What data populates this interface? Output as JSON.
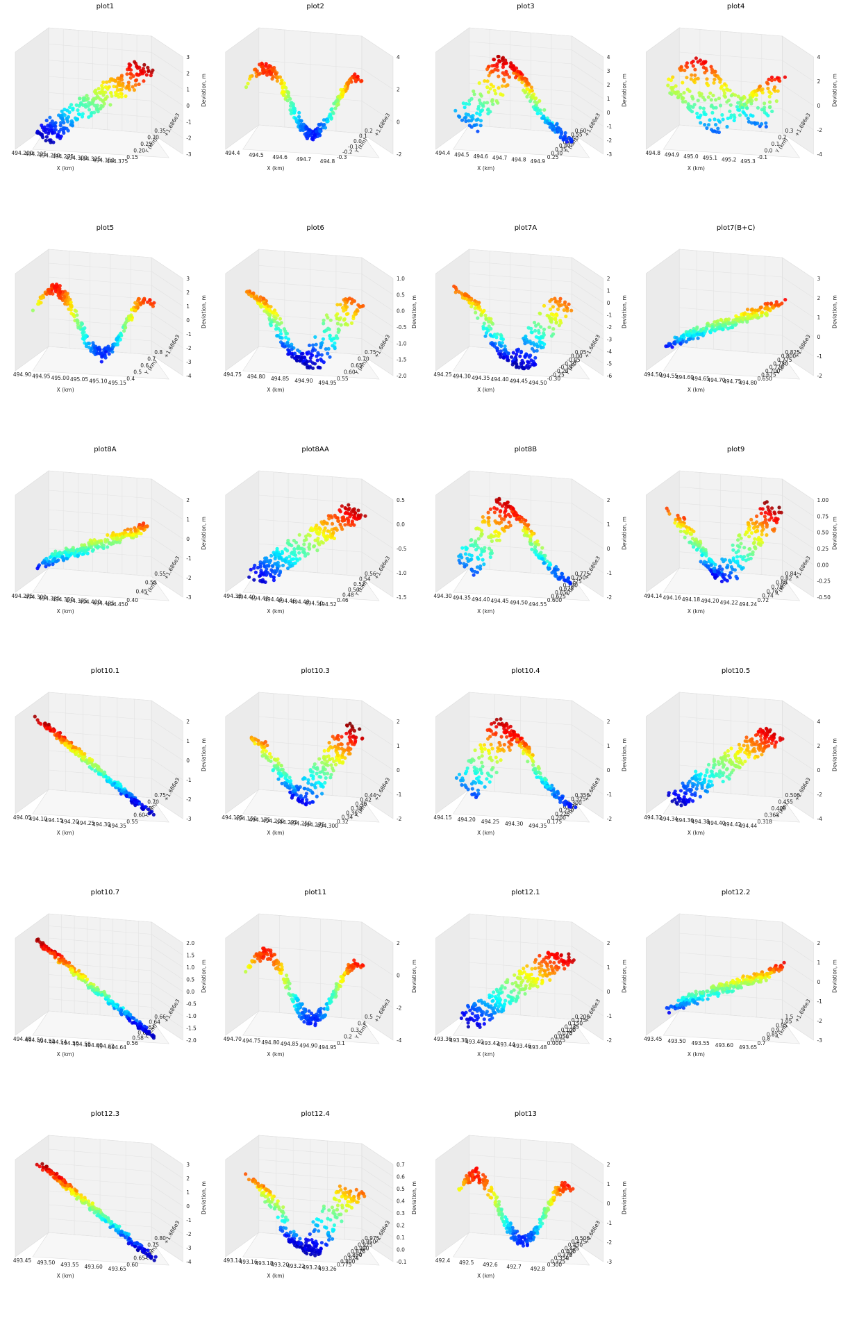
{
  "figure": {
    "layout": "6 rows x 4 columns of 3D scatter subplots"
  },
  "chart_data": [
    {
      "type": "scatter",
      "title": "plot1",
      "xlabel": "X (km)",
      "ylabel": "Y (km)",
      "zlabel": "Deviation, m",
      "offset": "+1.686e3",
      "xticks": [
        "494.200",
        "494.225",
        "494.250",
        "494.275",
        "494.300",
        "494.325",
        "494.350",
        "494.375"
      ],
      "yticks": [
        "0.15",
        "0.20",
        "0.25",
        "0.30",
        "0.35"
      ],
      "zticks": [
        "-3",
        "-2",
        "-1",
        "0",
        "1",
        "2",
        "3"
      ],
      "shape": "rise",
      "zlim": [
        -3,
        3
      ]
    },
    {
      "type": "scatter",
      "title": "plot2",
      "xlabel": "X (km)",
      "ylabel": "Y (km)",
      "zlabel": "",
      "offset": "+1.686e3",
      "xticks": [
        "494.4",
        "494.5",
        "494.6",
        "494.7",
        "494.8"
      ],
      "yticks": [
        "-0.3",
        "-0.2",
        "-0.1",
        "0.0",
        "0.1",
        "0.2"
      ],
      "zticks": [
        "-2",
        "0",
        "2",
        "4"
      ],
      "shape": "wave",
      "zlim": [
        -3,
        4
      ]
    },
    {
      "type": "scatter",
      "title": "plot3",
      "xlabel": "X (km)",
      "ylabel": "Y (km)",
      "zlabel": "Deviation, m",
      "offset": "+1.686e3",
      "xticks": [
        "494.4",
        "494.5",
        "494.6",
        "494.7",
        "494.8",
        "494.9"
      ],
      "yticks": [
        "0.25",
        "0.30",
        "0.35",
        "0.40",
        "0.45",
        "0.50",
        "0.55",
        "0.60"
      ],
      "zticks": [
        "-3",
        "-2",
        "-1",
        "0",
        "1",
        "2",
        "3",
        "4"
      ],
      "shape": "peak",
      "zlim": [
        -3,
        4
      ]
    },
    {
      "type": "scatter",
      "title": "plot4",
      "xlabel": "X (km)",
      "ylabel": "Y (km)",
      "zlabel": "Deviation, m",
      "offset": "+1.686e3",
      "xticks": [
        "494.8",
        "494.9",
        "495.0",
        "495.1",
        "495.2",
        "495.3"
      ],
      "yticks": [
        "-0.1",
        "0.0",
        "0.1",
        "0.2",
        "0.3"
      ],
      "zticks": [
        "-4",
        "-2",
        "0",
        "2",
        "4"
      ],
      "shape": "blob",
      "zlim": [
        -4,
        4
      ]
    },
    {
      "type": "scatter",
      "title": "plot5",
      "xlabel": "X (km)",
      "ylabel": "Y (km)",
      "zlabel": "Deviation, m",
      "offset": "+1.686e3",
      "xticks": [
        "494.90",
        "494.95",
        "495.00",
        "495.05",
        "495.10",
        "495.15"
      ],
      "yticks": [
        "0.4",
        "0.5",
        "0.6",
        "0.7",
        "0.8"
      ],
      "zticks": [
        "-4",
        "-3",
        "-2",
        "-1",
        "0",
        "1",
        "2",
        "3"
      ],
      "shape": "wave",
      "zlim": [
        -4,
        3
      ]
    },
    {
      "type": "scatter",
      "title": "plot6",
      "xlabel": "X (km)",
      "ylabel": "Y (km)",
      "zlabel": "Deviation, m",
      "offset": "+1.686e3",
      "xticks": [
        "494.75",
        "494.80",
        "494.85",
        "494.90",
        "494.95"
      ],
      "yticks": [
        "0.55",
        "0.60",
        "0.65",
        "0.70",
        "0.75"
      ],
      "zticks": [
        "-2.0",
        "-1.5",
        "-1.0",
        "-0.5",
        "0.0",
        "0.5",
        "1.0"
      ],
      "shape": "valley",
      "zlim": [
        -2,
        1
      ]
    },
    {
      "type": "scatter",
      "title": "plot7A",
      "xlabel": "X (km)",
      "ylabel": "Y (km)",
      "zlabel": "Deviation, m",
      "offset": "+1.686e3",
      "xticks": [
        "494.25",
        "494.30",
        "494.35",
        "494.40",
        "494.45",
        "494.50"
      ],
      "yticks": [
        "-0.30",
        "-0.25",
        "-0.20",
        "-0.15",
        "-0.10",
        "-0.05",
        "0.00",
        "0.05"
      ],
      "zticks": [
        "-6",
        "-5",
        "-4",
        "-3",
        "-2",
        "-1",
        "0",
        "1",
        "2"
      ],
      "shape": "valley",
      "zlim": [
        -6,
        2
      ]
    },
    {
      "type": "scatter",
      "title": "plot7(B+C)",
      "xlabel": "X (km)",
      "ylabel": "Y (km)",
      "zlabel": "Deviation, m",
      "offset": "+1.686e3",
      "xticks": [
        "494.50",
        "494.55",
        "494.60",
        "494.65",
        "494.70",
        "494.75",
        "494.80"
      ],
      "yticks": [
        "0.650",
        "0.675",
        "0.700",
        "0.725",
        "0.750",
        "0.775",
        "0.800",
        "0.825"
      ],
      "zticks": [
        "-2",
        "-1",
        "0",
        "1",
        "2",
        "3"
      ],
      "shape": "diag",
      "zlim": [
        -2,
        3
      ]
    },
    {
      "type": "scatter",
      "title": "plot8A",
      "xlabel": "X (km)",
      "ylabel": "Y (km)",
      "zlabel": "Deviation, m",
      "offset": "+1.686e3",
      "xticks": [
        "494.275",
        "494.300",
        "494.325",
        "494.350",
        "494.375",
        "494.400",
        "494.425",
        "494.450"
      ],
      "yticks": [
        "0.40",
        "0.45",
        "0.50",
        "0.55"
      ],
      "zticks": [
        "-3",
        "-2",
        "-1",
        "0",
        "1",
        "2"
      ],
      "shape": "diag",
      "zlim": [
        -3,
        2
      ]
    },
    {
      "type": "scatter",
      "title": "plot8AA",
      "xlabel": "X (km)",
      "ylabel": "Y (km)",
      "zlabel": "",
      "offset": "+1.686e3",
      "xticks": [
        "494.38",
        "494.40",
        "494.42",
        "494.44",
        "494.46",
        "494.48",
        "494.50",
        "494.52"
      ],
      "yticks": [
        "0.46",
        "0.48",
        "0.50",
        "0.52",
        "0.54",
        "0.56"
      ],
      "zticks": [
        "-1.5",
        "-1.0",
        "-0.5",
        "0.0",
        "0.5"
      ],
      "shape": "rise",
      "zlim": [
        -1.5,
        0.75
      ]
    },
    {
      "type": "scatter",
      "title": "plot8B",
      "xlabel": "X (km)",
      "ylabel": "Y (km)",
      "zlabel": "Deviation, m",
      "offset": "+1.686e3",
      "xticks": [
        "494.30",
        "494.35",
        "494.40",
        "494.45",
        "494.50",
        "494.55"
      ],
      "yticks": [
        "0.600",
        "0.625",
        "0.650",
        "0.675",
        "0.700",
        "0.725",
        "0.750",
        "0.775"
      ],
      "zticks": [
        "-2",
        "-1",
        "0",
        "1",
        "2"
      ],
      "shape": "peak",
      "zlim": [
        -2,
        2
      ]
    },
    {
      "type": "scatter",
      "title": "plot9",
      "xlabel": "X (km)",
      "ylabel": "Y (km)",
      "zlabel": "Deviation, m",
      "offset": "+1.686e3",
      "xticks": [
        "494.14",
        "494.16",
        "494.18",
        "494.20",
        "494.22",
        "494.24"
      ],
      "yticks": [
        "0.72",
        "0.74",
        "0.76",
        "0.78",
        "0.80",
        "0.82",
        "0.84"
      ],
      "zticks": [
        "-0.50",
        "-0.25",
        "0.00",
        "0.25",
        "0.50",
        "0.75",
        "1.00"
      ],
      "shape": "vee",
      "zlim": [
        -0.5,
        1
      ]
    },
    {
      "type": "scatter",
      "title": "plot10.1",
      "xlabel": "X (km)",
      "ylabel": "Y (km)",
      "zlabel": "Deviation, m",
      "offset": "+1.686e3",
      "xticks": [
        "494.05",
        "494.10",
        "494.15",
        "494.20",
        "494.25",
        "494.30",
        "494.35"
      ],
      "yticks": [
        "0.55",
        "0.60",
        "0.65",
        "0.70",
        "0.75"
      ],
      "zticks": [
        "-3",
        "-2",
        "-1",
        "0",
        "1",
        "2"
      ],
      "shape": "fall",
      "zlim": [
        -3,
        2
      ]
    },
    {
      "type": "scatter",
      "title": "plot10.3",
      "xlabel": "X (km)",
      "ylabel": "Y (km)",
      "zlabel": "",
      "offset": "+1.686e3",
      "xticks": [
        "494.125",
        "494.150",
        "494.175",
        "494.200",
        "494.225",
        "494.250",
        "494.275",
        "494.300"
      ],
      "yticks": [
        "0.32",
        "0.34",
        "0.36",
        "0.38",
        "0.40",
        "0.42",
        "0.44"
      ],
      "zticks": [
        "-2",
        "-1",
        "0",
        "1",
        "2"
      ],
      "shape": "vee",
      "zlim": [
        -2,
        2
      ]
    },
    {
      "type": "scatter",
      "title": "plot10.4",
      "xlabel": "X (km)",
      "ylabel": "Y (km)",
      "zlabel": "Deviation, m",
      "offset": "+1.686e3",
      "xticks": [
        "494.15",
        "494.20",
        "494.25",
        "494.30",
        "494.35"
      ],
      "yticks": [
        "0.175",
        "0.200",
        "0.225",
        "0.250",
        "0.275",
        "0.300",
        "0.325",
        "0.350"
      ],
      "zticks": [
        "-2",
        "-1",
        "0",
        "1",
        "2"
      ],
      "shape": "peak",
      "zlim": [
        -2,
        2
      ]
    },
    {
      "type": "scatter",
      "title": "plot10.5",
      "xlabel": "X (km)",
      "ylabel": "Y (km)",
      "zlabel": "Deviation, m",
      "offset": "+1.686e3",
      "xticks": [
        "494.32",
        "494.34",
        "494.36",
        "494.38",
        "494.40",
        "494.42",
        "494.44"
      ],
      "yticks": [
        "0.318",
        "0.363",
        "0.409",
        "0.455",
        "0.500"
      ],
      "zticks": [
        "-4",
        "-2",
        "0",
        "2",
        "4"
      ],
      "shape": "rise",
      "zlim": [
        -4,
        4
      ]
    },
    {
      "type": "scatter",
      "title": "plot10.7",
      "xlabel": "X (km)",
      "ylabel": "Y (km)",
      "zlabel": "Deviation, m",
      "offset": "+1.686e3",
      "xticks": [
        "494.48",
        "494.50",
        "494.52",
        "494.54",
        "494.56",
        "494.58",
        "494.60",
        "494.62",
        "494.64"
      ],
      "yticks": [
        "0.56",
        "0.58",
        "0.60",
        "0.62",
        "0.64",
        "0.66"
      ],
      "zticks": [
        "-2.0",
        "-1.5",
        "-1.0",
        "-0.5",
        "0.0",
        "0.5",
        "1.0",
        "1.5",
        "2.0"
      ],
      "shape": "fall",
      "zlim": [
        -2,
        2
      ]
    },
    {
      "type": "scatter",
      "title": "plot11",
      "xlabel": "X (km)",
      "ylabel": "Y (km)",
      "zlabel": "Deviation, m",
      "offset": "+1.686e3",
      "xticks": [
        "494.70",
        "494.75",
        "494.80",
        "494.85",
        "494.90",
        "494.95"
      ],
      "yticks": [
        "0.1",
        "0.2",
        "0.3",
        "0.4",
        "0.5"
      ],
      "zticks": [
        "-4",
        "-2",
        "0",
        "2"
      ],
      "shape": "wave",
      "zlim": [
        -4,
        2
      ]
    },
    {
      "type": "scatter",
      "title": "plot12.1",
      "xlabel": "X (km)",
      "ylabel": "Y (km)",
      "zlabel": "Deviation, m",
      "offset": "+1.686e3",
      "xticks": [
        "493.36",
        "493.38",
        "493.40",
        "493.42",
        "493.44",
        "493.46",
        "493.48"
      ],
      "yticks": [
        "0.000",
        "0.025",
        "0.050",
        "0.075",
        "0.100",
        "0.125",
        "0.150",
        "0.175",
        "0.200"
      ],
      "zticks": [
        "-2",
        "-1",
        "0",
        "1",
        "2"
      ],
      "shape": "rise",
      "zlim": [
        -2,
        2
      ]
    },
    {
      "type": "scatter",
      "title": "plot12.2",
      "xlabel": "X (km)",
      "ylabel": "Y (km)",
      "zlabel": "Deviation, m",
      "offset": "+1.686e3",
      "xticks": [
        "493.45",
        "493.50",
        "493.55",
        "493.60",
        "493.65"
      ],
      "yticks": [
        "0.7",
        "0.8",
        "0.85",
        "0.9",
        "0.95",
        "1.05",
        "1.5"
      ],
      "zticks": [
        "-3",
        "-2",
        "-1",
        "0",
        "1",
        "2"
      ],
      "shape": "diag",
      "zlim": [
        -3,
        2
      ]
    },
    {
      "type": "scatter",
      "title": "plot12.3",
      "xlabel": "X (km)",
      "ylabel": "Y (km)",
      "zlabel": "Deviation, m",
      "offset": "+1.686e3",
      "xticks": [
        "493.45",
        "493.50",
        "493.55",
        "493.60",
        "493.65"
      ],
      "yticks": [
        "0.60",
        "0.65",
        "0.70",
        "0.75",
        "0.80"
      ],
      "zticks": [
        "-4",
        "-3",
        "-2",
        "-1",
        "0",
        "1",
        "2",
        "3"
      ],
      "shape": "fall",
      "zlim": [
        -4,
        3
      ]
    },
    {
      "type": "scatter",
      "title": "plot12.4",
      "xlabel": "X (km)",
      "ylabel": "Y (km)",
      "zlabel": "Deviation, m",
      "offset": "+1.686e3",
      "xticks": [
        "493.14",
        "493.16",
        "493.18",
        "493.20",
        "493.22",
        "493.24",
        "493.26"
      ],
      "yticks": [
        "0.775",
        "0.800",
        "0.825",
        "0.850",
        "0.875",
        "0.900",
        "0.925",
        "0.950",
        "0.975"
      ],
      "zticks": [
        "-0.1",
        "0.0",
        "0.1",
        "0.2",
        "0.3",
        "0.4",
        "0.5",
        "0.6",
        "0.7"
      ],
      "shape": "valley",
      "zlim": [
        -0.1,
        0.7
      ]
    },
    {
      "type": "scatter",
      "title": "plot13",
      "xlabel": "X (km)",
      "ylabel": "Y (km)",
      "zlabel": "Deviation, m",
      "offset": "+1.686e3",
      "xticks": [
        "492.4",
        "492.5",
        "492.6",
        "492.7",
        "492.8"
      ],
      "yticks": [
        "0.300",
        "0.325",
        "0.350",
        "0.375",
        "0.400",
        "0.425",
        "0.450",
        "0.475",
        "0.500"
      ],
      "zticks": [
        "-3",
        "-2",
        "-1",
        "0",
        "1",
        "2"
      ],
      "shape": "wave",
      "zlim": [
        -3,
        2
      ]
    }
  ]
}
